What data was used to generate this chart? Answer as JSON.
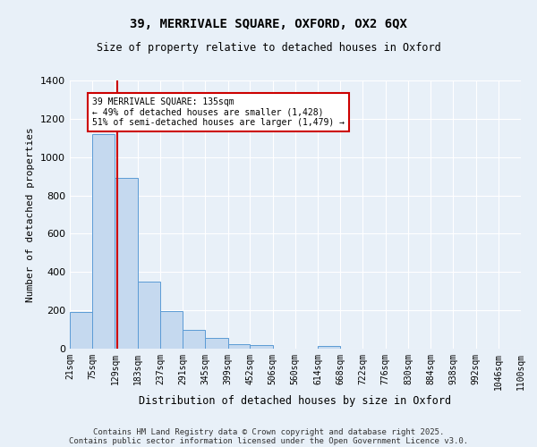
{
  "title1": "39, MERRIVALE SQUARE, OXFORD, OX2 6QX",
  "title2": "Size of property relative to detached houses in Oxford",
  "xlabel": "Distribution of detached houses by size in Oxford",
  "ylabel": "Number of detached properties",
  "bin_edges": [
    21,
    75,
    129,
    183,
    237,
    291,
    345,
    399,
    452,
    506,
    560,
    614,
    668,
    722,
    776,
    830,
    884,
    938,
    992,
    1046,
    1100
  ],
  "bar_heights": [
    190,
    1120,
    890,
    350,
    195,
    100,
    55,
    25,
    20,
    0,
    0,
    15,
    0,
    0,
    0,
    0,
    0,
    0,
    0,
    0
  ],
  "bar_color": "#c5d9ef",
  "bar_edge_color": "#5b9bd5",
  "vline_x": 135,
  "vline_color": "#cc0000",
  "annotation_text": "39 MERRIVALE SQUARE: 135sqm\n← 49% of detached houses are smaller (1,428)\n51% of semi-detached houses are larger (1,479) →",
  "annotation_box_color": "#ffffff",
  "annotation_box_edge_color": "#cc0000",
  "ylim": [
    0,
    1400
  ],
  "yticks": [
    0,
    200,
    400,
    600,
    800,
    1000,
    1200,
    1400
  ],
  "tick_labels": [
    "21sqm",
    "75sqm",
    "129sqm",
    "183sqm",
    "237sqm",
    "291sqm",
    "345sqm",
    "399sqm",
    "452sqm",
    "506sqm",
    "560sqm",
    "614sqm",
    "668sqm",
    "722sqm",
    "776sqm",
    "830sqm",
    "884sqm",
    "938sqm",
    "992sqm",
    "1046sqm",
    "1100sqm"
  ],
  "background_color": "#e8f0f8",
  "grid_color": "#ffffff",
  "footer_line1": "Contains HM Land Registry data © Crown copyright and database right 2025.",
  "footer_line2": "Contains public sector information licensed under the Open Government Licence v3.0."
}
